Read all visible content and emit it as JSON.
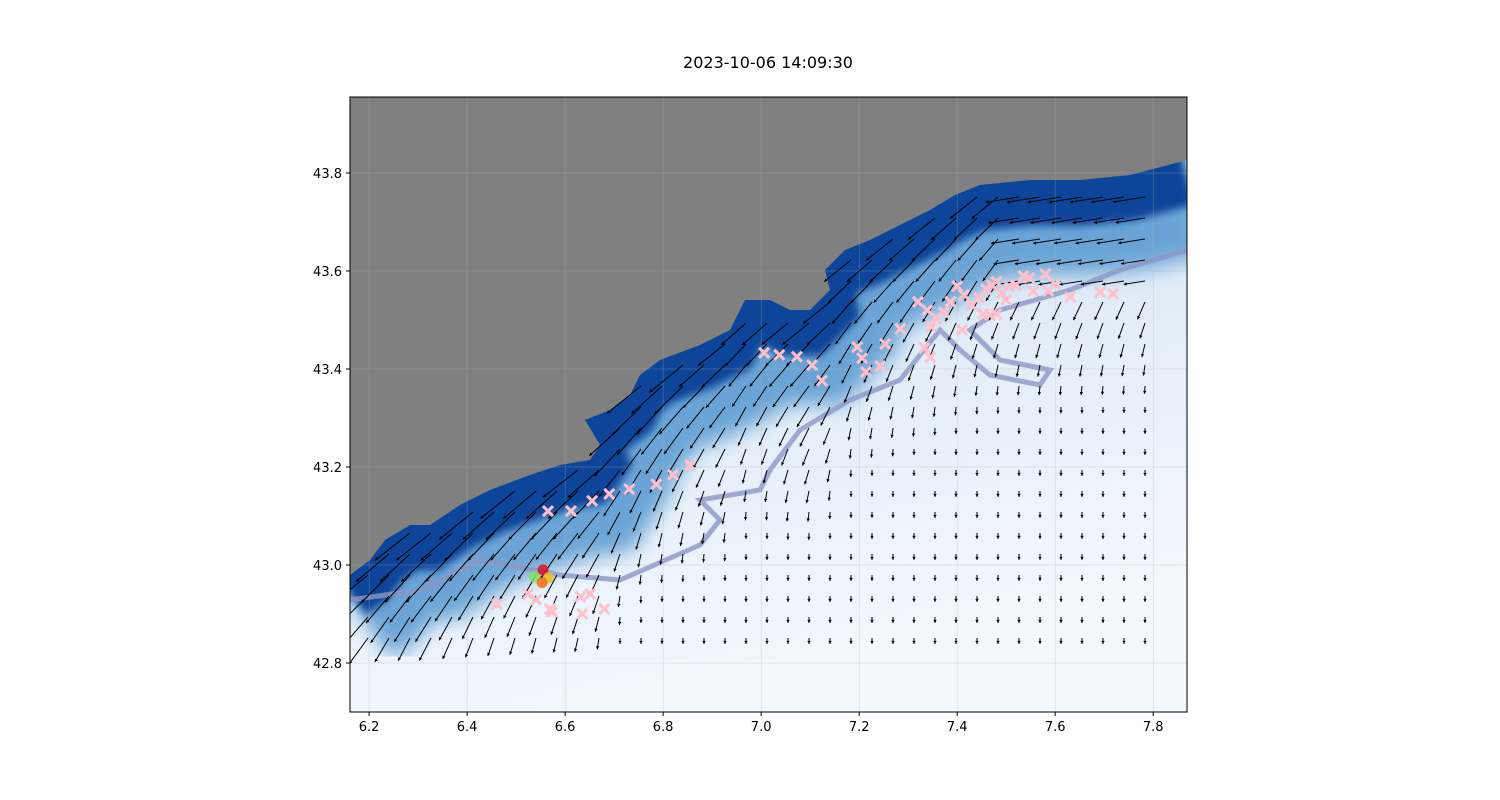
{
  "title": "2023-10-06 14:09:30",
  "colors": {
    "land": "#808080",
    "deep_water": "#08459a",
    "shallow_water": "#f3f8fe",
    "markers": "#ffc0cb",
    "isobath": "#1f3fb0"
  },
  "chart_data": {
    "type": "scatter",
    "xlim": [
      6.161,
      7.869
    ],
    "ylim": [
      42.7,
      43.955
    ],
    "grid": true,
    "x_ticks": [
      "6.2",
      "6.4",
      "6.6",
      "6.8",
      "7.0",
      "7.2",
      "7.4",
      "7.6",
      "7.8"
    ],
    "y_ticks": [
      "42.8",
      "43.0",
      "43.2",
      "43.4",
      "43.6",
      "43.8"
    ],
    "background": "bathymetry (Blues colormap), land in gray, current vectors (quiver)",
    "cross_markers": [
      [
        6.565,
        43.11
      ],
      [
        6.612,
        43.11
      ],
      [
        6.655,
        43.131
      ],
      [
        6.69,
        43.145
      ],
      [
        6.731,
        43.155
      ],
      [
        6.786,
        43.165
      ],
      [
        6.82,
        43.184
      ],
      [
        6.855,
        43.204
      ],
      [
        7.006,
        43.433
      ],
      [
        7.037,
        43.429
      ],
      [
        7.073,
        43.425
      ],
      [
        7.104,
        43.408
      ],
      [
        7.124,
        43.376
      ],
      [
        7.196,
        43.445
      ],
      [
        7.206,
        43.422
      ],
      [
        7.214,
        43.394
      ],
      [
        7.243,
        43.406
      ],
      [
        7.253,
        43.451
      ],
      [
        7.284,
        43.482
      ],
      [
        7.32,
        43.537
      ],
      [
        7.339,
        43.52
      ],
      [
        7.347,
        43.486
      ],
      [
        7.333,
        43.443
      ],
      [
        7.345,
        43.424
      ],
      [
        7.357,
        43.504
      ],
      [
        7.373,
        43.516
      ],
      [
        7.386,
        43.537
      ],
      [
        7.4,
        43.569
      ],
      [
        7.414,
        43.551
      ],
      [
        7.41,
        43.48
      ],
      [
        7.429,
        43.531
      ],
      [
        7.445,
        43.545
      ],
      [
        7.459,
        43.563
      ],
      [
        7.471,
        43.571
      ],
      [
        7.48,
        43.578
      ],
      [
        7.492,
        43.555
      ],
      [
        7.506,
        43.569
      ],
      [
        7.52,
        43.571
      ],
      [
        7.535,
        43.59
      ],
      [
        7.547,
        43.586
      ],
      [
        7.555,
        43.559
      ],
      [
        7.58,
        43.594
      ],
      [
        7.586,
        43.559
      ],
      [
        7.6,
        43.573
      ],
      [
        7.631,
        43.547
      ],
      [
        7.692,
        43.557
      ],
      [
        7.718,
        43.553
      ],
      [
        7.453,
        43.512
      ],
      [
        7.467,
        43.51
      ],
      [
        7.48,
        43.512
      ],
      [
        7.5,
        43.541
      ],
      [
        6.461,
        42.92
      ],
      [
        6.524,
        42.941
      ],
      [
        6.541,
        42.929
      ],
      [
        6.569,
        42.91
      ],
      [
        6.573,
        42.904
      ],
      [
        6.631,
        42.935
      ],
      [
        6.651,
        42.941
      ],
      [
        6.635,
        42.9
      ],
      [
        6.68,
        42.91
      ]
    ],
    "dot_markers": [
      {
        "lon": 6.555,
        "lat": 42.99,
        "color": "#e01020"
      },
      {
        "lon": 6.537,
        "lat": 42.976,
        "color": "#80e060"
      },
      {
        "lon": 6.566,
        "lat": 42.974,
        "color": "#f0c020"
      },
      {
        "lon": 6.553,
        "lat": 42.964,
        "color": "#f07010"
      }
    ]
  }
}
